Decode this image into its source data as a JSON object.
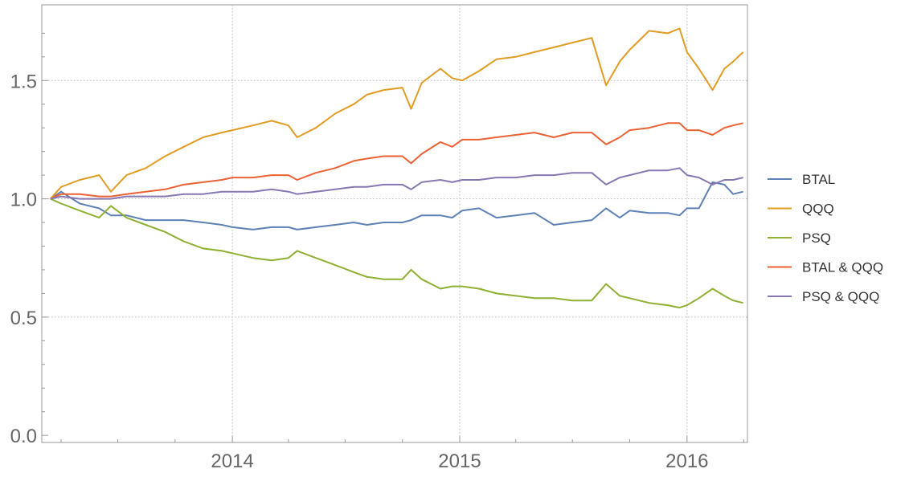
{
  "chart_data": {
    "type": "line",
    "title": "",
    "xlabel": "",
    "ylabel": "",
    "xlim": [
      "2013-03-01",
      "2016-04-07"
    ],
    "ylim": [
      -0.03,
      1.82
    ],
    "x_ticks": [
      "2014",
      "2015",
      "2016"
    ],
    "y_ticks": [
      "0.0",
      "0.5",
      "1.0",
      "1.5"
    ],
    "grid": "dotted at major ticks",
    "legend_position": "right",
    "x": [
      "2013-03-15",
      "2013-04-01",
      "2013-05-01",
      "2013-06-01",
      "2013-06-20",
      "2013-07-15",
      "2013-08-15",
      "2013-09-15",
      "2013-10-15",
      "2013-11-15",
      "2013-12-15",
      "2014-01-01",
      "2014-02-03",
      "2014-03-05",
      "2014-04-01",
      "2014-04-15",
      "2014-05-15",
      "2014-06-15",
      "2014-07-15",
      "2014-08-05",
      "2014-09-01",
      "2014-10-01",
      "2014-10-15",
      "2014-11-01",
      "2014-12-01",
      "2014-12-20",
      "2015-01-05",
      "2015-02-01",
      "2015-03-01",
      "2015-04-01",
      "2015-05-01",
      "2015-06-01",
      "2015-07-01",
      "2015-08-01",
      "2015-08-24",
      "2015-09-15",
      "2015-10-01",
      "2015-11-01",
      "2015-12-01",
      "2015-12-20",
      "2016-01-01",
      "2016-01-20",
      "2016-02-11",
      "2016-03-01",
      "2016-03-15",
      "2016-03-31"
    ],
    "series": [
      {
        "name": "BTAL",
        "color": "#5e81b5",
        "values": [
          1.0,
          1.03,
          0.98,
          0.96,
          0.93,
          0.93,
          0.91,
          0.91,
          0.91,
          0.9,
          0.89,
          0.88,
          0.87,
          0.88,
          0.88,
          0.87,
          0.88,
          0.89,
          0.9,
          0.89,
          0.9,
          0.9,
          0.91,
          0.93,
          0.93,
          0.92,
          0.95,
          0.96,
          0.92,
          0.93,
          0.94,
          0.89,
          0.9,
          0.91,
          0.96,
          0.92,
          0.95,
          0.94,
          0.94,
          0.93,
          0.96,
          0.96,
          1.07,
          1.06,
          1.02,
          1.03
        ]
      },
      {
        "name": "QQQ",
        "color": "#e19c24",
        "values": [
          1.0,
          1.05,
          1.08,
          1.1,
          1.03,
          1.1,
          1.13,
          1.18,
          1.22,
          1.26,
          1.28,
          1.29,
          1.31,
          1.33,
          1.31,
          1.26,
          1.3,
          1.36,
          1.4,
          1.44,
          1.46,
          1.47,
          1.38,
          1.49,
          1.55,
          1.51,
          1.5,
          1.54,
          1.59,
          1.6,
          1.62,
          1.64,
          1.66,
          1.68,
          1.48,
          1.58,
          1.63,
          1.71,
          1.7,
          1.72,
          1.62,
          1.55,
          1.46,
          1.55,
          1.58,
          1.62
        ]
      },
      {
        "name": "PSQ",
        "color": "#8fb032",
        "values": [
          1.0,
          0.98,
          0.95,
          0.92,
          0.97,
          0.92,
          0.89,
          0.86,
          0.82,
          0.79,
          0.78,
          0.77,
          0.75,
          0.74,
          0.75,
          0.78,
          0.75,
          0.72,
          0.69,
          0.67,
          0.66,
          0.66,
          0.7,
          0.66,
          0.62,
          0.63,
          0.63,
          0.62,
          0.6,
          0.59,
          0.58,
          0.58,
          0.57,
          0.57,
          0.64,
          0.59,
          0.58,
          0.56,
          0.55,
          0.54,
          0.55,
          0.58,
          0.62,
          0.59,
          0.57,
          0.56
        ]
      },
      {
        "name": "BTAL & QQQ",
        "color": "#eb6235",
        "values": [
          1.0,
          1.02,
          1.02,
          1.01,
          1.01,
          1.02,
          1.03,
          1.04,
          1.06,
          1.07,
          1.08,
          1.09,
          1.09,
          1.1,
          1.1,
          1.08,
          1.11,
          1.13,
          1.16,
          1.17,
          1.18,
          1.18,
          1.15,
          1.19,
          1.24,
          1.22,
          1.25,
          1.25,
          1.26,
          1.27,
          1.28,
          1.26,
          1.28,
          1.28,
          1.23,
          1.26,
          1.29,
          1.3,
          1.32,
          1.32,
          1.29,
          1.29,
          1.27,
          1.3,
          1.31,
          1.32
        ]
      },
      {
        "name": "PSQ & QQQ",
        "color": "#8778b3",
        "values": [
          1.0,
          1.01,
          1.0,
          1.0,
          1.0,
          1.01,
          1.01,
          1.01,
          1.02,
          1.02,
          1.03,
          1.03,
          1.03,
          1.04,
          1.03,
          1.02,
          1.03,
          1.04,
          1.05,
          1.05,
          1.06,
          1.06,
          1.04,
          1.07,
          1.08,
          1.07,
          1.08,
          1.08,
          1.09,
          1.09,
          1.1,
          1.1,
          1.11,
          1.11,
          1.06,
          1.09,
          1.1,
          1.12,
          1.12,
          1.13,
          1.1,
          1.09,
          1.06,
          1.08,
          1.08,
          1.09
        ]
      }
    ]
  }
}
